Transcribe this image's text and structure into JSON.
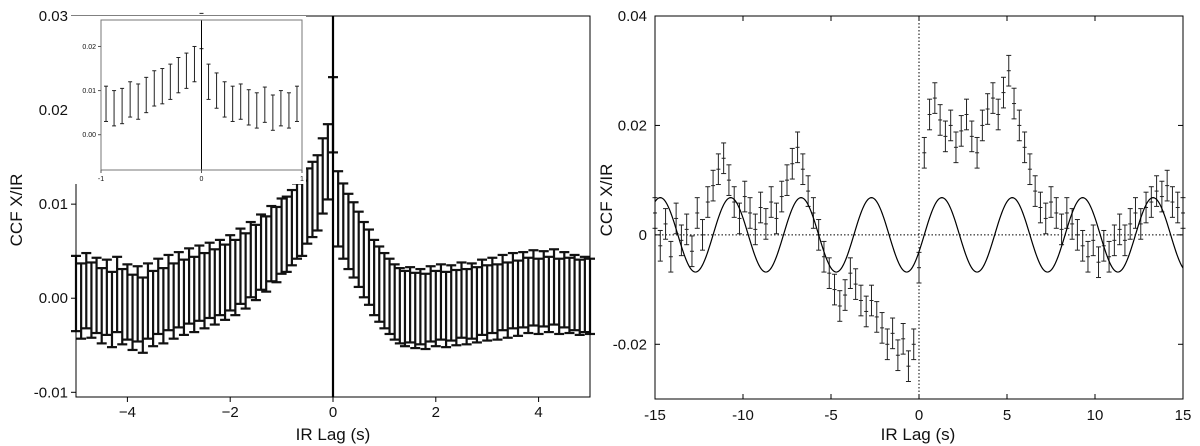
{
  "chart_data": [
    {
      "type": "scatter",
      "panel": "left",
      "xlabel": "IR Lag (s)",
      "ylabel": "CCF X/IR",
      "xlim": [
        -5,
        5
      ],
      "ylim": [
        -0.0105,
        0.03
      ],
      "xticks": [
        -4,
        -2,
        0,
        2,
        4
      ],
      "xtick_labels": [
        "−4",
        "−2",
        "0",
        "2",
        "4"
      ],
      "yticks": [
        -0.01,
        0.0,
        0.01,
        0.02,
        0.03
      ],
      "ytick_labels": [
        "-0.01",
        "0.00",
        "0.01",
        "0.02",
        "0.03"
      ],
      "vline": 0,
      "errorbar_halfwidth": 0.004,
      "series": [
        {
          "x": [
            -5.0,
            -4.9,
            -4.8,
            -4.7,
            -4.6,
            -4.5,
            -4.4,
            -4.3,
            -4.2,
            -4.1,
            -4.0,
            -3.9,
            -3.8,
            -3.7,
            -3.6,
            -3.5,
            -3.4,
            -3.3,
            -3.2,
            -3.1,
            -3.0,
            -2.9,
            -2.8,
            -2.7,
            -2.6,
            -2.5,
            -2.4,
            -2.3,
            -2.2,
            -2.1,
            -2.0,
            -1.9,
            -1.8,
            -1.7,
            -1.6,
            -1.5,
            -1.4,
            -1.3,
            -1.2,
            -1.1,
            -1.0,
            -0.9,
            -0.8,
            -0.7,
            -0.6,
            -0.5,
            -0.4,
            -0.3,
            -0.2,
            -0.1,
            0.0,
            0.1,
            0.2,
            0.3,
            0.4,
            0.5,
            0.6,
            0.7,
            0.8,
            0.9,
            1.0,
            1.1,
            1.2,
            1.3,
            1.4,
            1.5,
            1.6,
            1.7,
            1.8,
            1.9,
            2.0,
            2.1,
            2.2,
            2.3,
            2.4,
            2.5,
            2.6,
            2.7,
            2.8,
            2.9,
            3.0,
            3.1,
            3.2,
            3.3,
            3.4,
            3.5,
            3.6,
            3.7,
            3.8,
            3.9,
            4.0,
            4.1,
            4.2,
            4.3,
            4.4,
            4.5,
            4.6,
            4.7,
            4.8,
            4.9,
            5.0
          ],
          "y": [
            0.0005,
            -0.0003,
            0.0008,
            -0.0002,
            0.0003,
            -0.0008,
            0.0001,
            -0.0012,
            0.0004,
            -0.0009,
            -0.0004,
            -0.0015,
            -0.0006,
            -0.0018,
            -0.0003,
            -0.0011,
            0.0002,
            -0.0008,
            0.0006,
            -0.0003,
            0.0009,
            0.0001,
            0.0013,
            0.0004,
            0.0016,
            0.0008,
            0.0019,
            0.0012,
            0.0022,
            0.0017,
            0.0027,
            0.0022,
            0.0034,
            0.0029,
            0.0041,
            0.0038,
            0.0049,
            0.0047,
            0.0058,
            0.0057,
            0.0066,
            0.0068,
            0.0075,
            0.0082,
            0.0085,
            0.0098,
            0.0105,
            0.0112,
            0.013,
            0.0145,
            0.0195,
            0.0095,
            0.0082,
            0.0071,
            0.0062,
            0.0052,
            0.0041,
            0.0033,
            0.0022,
            0.0015,
            0.0008,
            0.0002,
            -0.0004,
            -0.0008,
            -0.0011,
            -0.0007,
            -0.0013,
            -0.0009,
            -0.0014,
            -0.0006,
            -0.0011,
            -0.0004,
            -0.0012,
            -0.0005,
            -0.001,
            -0.0002,
            -0.0009,
            -0.0003,
            -0.0007,
            0.0001,
            -0.0005,
            0.0003,
            -0.0004,
            0.0006,
            -0.0002,
            0.0008,
            0.0,
            0.0009,
            0.0003,
            0.0011,
            0.0002,
            0.001,
            0.0004,
            0.0012,
            0.0002,
            0.0009,
            0.0003,
            0.0006,
            0.0001,
            0.0004,
            0.0002
          ]
        }
      ],
      "inset": {
        "type": "scatter",
        "xlim": [
          -1,
          1
        ],
        "ylim": [
          -0.008,
          0.026
        ],
        "xticks": [
          -1,
          0,
          1
        ],
        "xtick_labels": [
          "-1",
          "0",
          "1"
        ],
        "yticks": [
          0.0,
          0.01,
          0.02
        ],
        "ytick_labels": [
          "0.00",
          "0.01",
          "0.02"
        ],
        "vline": 0,
        "errorbar_halfwidth": 0.004,
        "x": [
          -0.95,
          -0.87,
          -0.79,
          -0.71,
          -0.63,
          -0.55,
          -0.47,
          -0.39,
          -0.31,
          -0.23,
          -0.15,
          -0.07,
          0.0,
          0.07,
          0.15,
          0.23,
          0.31,
          0.39,
          0.47,
          0.55,
          0.63,
          0.71,
          0.79,
          0.87,
          0.95
        ],
        "y": [
          0.007,
          0.006,
          0.0065,
          0.008,
          0.0075,
          0.009,
          0.0105,
          0.011,
          0.012,
          0.0135,
          0.0145,
          0.016,
          0.0235,
          0.012,
          0.01,
          0.008,
          0.007,
          0.0075,
          0.0062,
          0.0055,
          0.0068,
          0.005,
          0.006,
          0.0055,
          0.007
        ]
      }
    },
    {
      "type": "scatter",
      "panel": "right",
      "xlabel": "IR Lag (s)",
      "ylabel": "CCF X/IR",
      "xlim": [
        -15,
        15
      ],
      "ylim": [
        -0.03,
        0.04
      ],
      "xticks": [
        -15,
        -10,
        -5,
        0,
        5,
        10,
        15
      ],
      "xtick_labels": [
        "-15",
        "-10",
        "-5",
        "0",
        "5",
        "10",
        "15"
      ],
      "yticks": [
        -0.02,
        0,
        0.02,
        0.04
      ],
      "ytick_labels": [
        "-0.02",
        "0",
        "0.02",
        "0.04"
      ],
      "hline_dotted": 0,
      "vline_dotted": 0,
      "errorbar_halfwidth": 0.0028,
      "series": [
        {
          "name": "",
          "x": [
            -15.0,
            -14.7,
            -14.4,
            -14.1,
            -13.8,
            -13.5,
            -13.2,
            -12.9,
            -12.6,
            -12.3,
            -12.0,
            -11.7,
            -11.4,
            -11.1,
            -10.8,
            -10.5,
            -10.2,
            -9.9,
            -9.6,
            -9.3,
            -9.0,
            -8.7,
            -8.4,
            -8.1,
            -7.8,
            -7.5,
            -7.2,
            -6.9,
            -6.6,
            -6.3,
            -6.0,
            -5.7,
            -5.4,
            -5.1,
            -4.8,
            -4.5,
            -4.2,
            -3.9,
            -3.6,
            -3.3,
            -3.0,
            -2.7,
            -2.4,
            -2.1,
            -1.8,
            -1.5,
            -1.2,
            -0.9,
            -0.6,
            -0.3,
            0.0,
            0.3,
            0.6,
            0.9,
            1.2,
            1.5,
            1.8,
            2.1,
            2.4,
            2.7,
            3.0,
            3.3,
            3.6,
            3.9,
            4.2,
            4.5,
            4.8,
            5.1,
            5.4,
            5.7,
            6.0,
            6.3,
            6.6,
            6.9,
            7.2,
            7.5,
            7.8,
            8.1,
            8.4,
            8.7,
            9.0,
            9.3,
            9.6,
            9.9,
            10.2,
            10.5,
            10.8,
            11.1,
            11.4,
            11.7,
            12.0,
            12.3,
            12.6,
            12.9,
            13.2,
            13.5,
            13.8,
            14.1,
            14.4,
            14.7,
            15.0
          ],
          "y": [
            0.004,
            -0.002,
            0.002,
            -0.004,
            0.003,
            -0.001,
            0.001,
            -0.003,
            0.004,
            0.0,
            0.006,
            0.009,
            0.012,
            0.014,
            0.01,
            0.006,
            0.003,
            0.007,
            0.004,
            0.001,
            0.005,
            0.002,
            0.006,
            0.003,
            0.007,
            0.01,
            0.013,
            0.016,
            0.012,
            0.008,
            0.004,
            0.0,
            -0.004,
            -0.007,
            -0.01,
            -0.013,
            -0.011,
            -0.007,
            -0.009,
            -0.012,
            -0.014,
            -0.012,
            -0.015,
            -0.017,
            -0.02,
            -0.018,
            -0.022,
            -0.019,
            -0.024,
            -0.02,
            -0.006,
            0.015,
            0.022,
            0.025,
            0.021,
            0.018,
            0.02,
            0.016,
            0.019,
            0.022,
            0.018,
            0.015,
            0.02,
            0.023,
            0.025,
            0.022,
            0.026,
            0.03,
            0.024,
            0.02,
            0.016,
            0.012,
            0.008,
            0.005,
            0.003,
            0.006,
            0.004,
            0.001,
            0.004,
            0.002,
            0.0,
            -0.002,
            -0.004,
            -0.001,
            -0.005,
            -0.002,
            -0.004,
            -0.001,
            0.001,
            -0.001,
            0.002,
            0.004,
            0.002,
            0.005,
            0.006,
            0.008,
            0.007,
            0.009,
            0.006,
            0.005,
            0.004
          ]
        },
        {
          "name": "",
          "type": "line",
          "function": "sine",
          "amplitude": 0.0068,
          "period": 4.0,
          "phase_peak_x": 1.3
        }
      ]
    }
  ]
}
